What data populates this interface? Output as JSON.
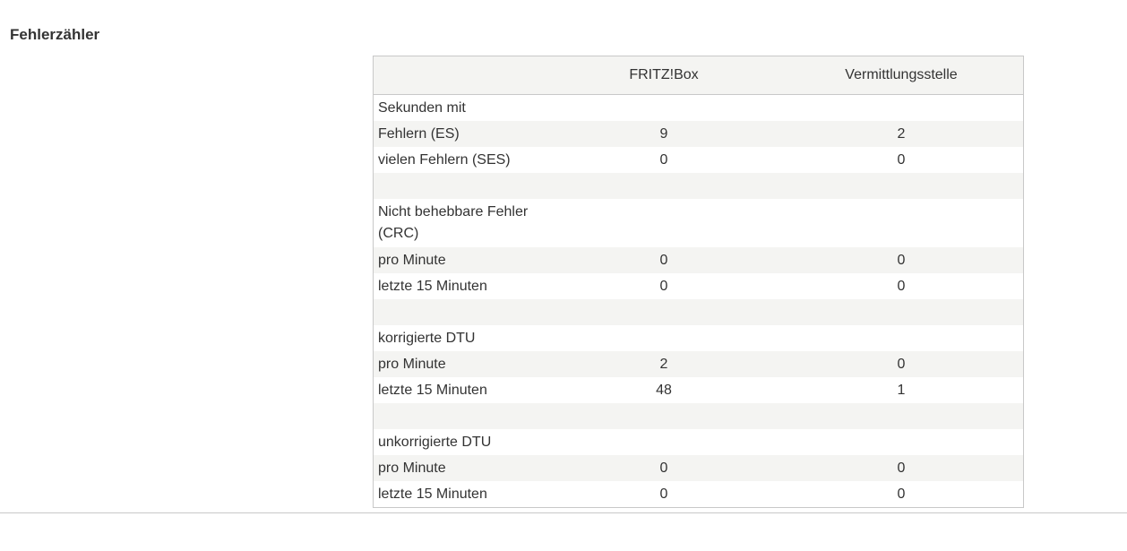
{
  "section": {
    "title": "Fehlerzähler"
  },
  "table": {
    "headers": [
      "",
      "FRITZ!Box",
      "Vermittlungsstelle"
    ],
    "rows": [
      {
        "label": "Sekunden mit",
        "fritzbox": "",
        "vermittlungsstelle": ""
      },
      {
        "label": "Fehlern (ES)",
        "fritzbox": "9",
        "vermittlungsstelle": "2"
      },
      {
        "label": "vielen Fehlern (SES)",
        "fritzbox": "0",
        "vermittlungsstelle": "0"
      },
      {
        "label": "",
        "fritzbox": "",
        "vermittlungsstelle": ""
      },
      {
        "label": "Nicht behebbare Fehler (CRC)",
        "fritzbox": "",
        "vermittlungsstelle": ""
      },
      {
        "label": "pro Minute",
        "fritzbox": "0",
        "vermittlungsstelle": "0"
      },
      {
        "label": "letzte 15 Minuten",
        "fritzbox": "0",
        "vermittlungsstelle": "0"
      },
      {
        "label": "",
        "fritzbox": "",
        "vermittlungsstelle": ""
      },
      {
        "label": "korrigierte DTU",
        "fritzbox": "",
        "vermittlungsstelle": ""
      },
      {
        "label": "pro Minute",
        "fritzbox": "2",
        "vermittlungsstelle": "0"
      },
      {
        "label": "letzte 15 Minuten",
        "fritzbox": "48",
        "vermittlungsstelle": "1"
      },
      {
        "label": "",
        "fritzbox": "",
        "vermittlungsstelle": ""
      },
      {
        "label": "unkorrigierte DTU",
        "fritzbox": "",
        "vermittlungsstelle": ""
      },
      {
        "label": "pro Minute",
        "fritzbox": "0",
        "vermittlungsstelle": "0"
      },
      {
        "label": "letzte 15 Minuten",
        "fritzbox": "0",
        "vermittlungsstelle": "0"
      }
    ]
  },
  "colors": {
    "text": "#333333",
    "shade": "#f4f4f2",
    "border": "#c8c8c8"
  }
}
